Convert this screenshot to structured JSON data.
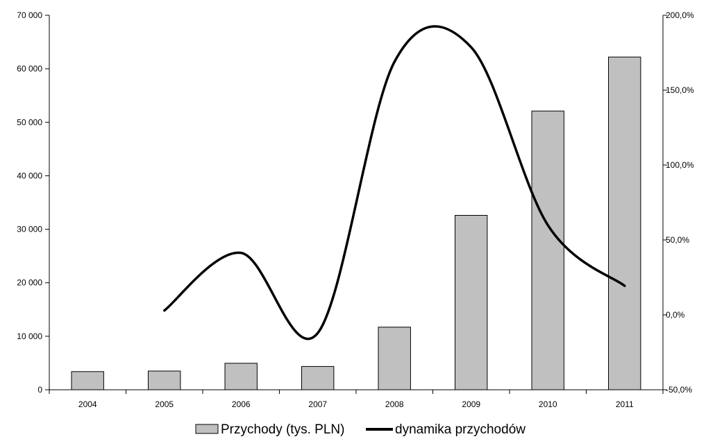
{
  "chart_data": {
    "type": "bar",
    "categories": [
      "2004",
      "2005",
      "2006",
      "2007",
      "2008",
      "2009",
      "2010",
      "2011"
    ],
    "series": [
      {
        "name": "Przychody (tys. PLN)",
        "type": "bar",
        "axis": "left",
        "color": "#c0c0c0",
        "values": [
          3400,
          3500,
          4950,
          4350,
          11700,
          32600,
          52100,
          62200
        ]
      },
      {
        "name": "dynamika przychodów",
        "type": "line",
        "axis": "right",
        "smooth": true,
        "color": "#000000",
        "values": [
          null,
          2.9,
          41.4,
          -12.1,
          169.0,
          178.6,
          59.8,
          19.4
        ]
      }
    ],
    "y_left": {
      "ylim": [
        0,
        70000
      ],
      "ticks": [
        0,
        10000,
        20000,
        30000,
        40000,
        50000,
        60000,
        70000
      ],
      "tick_labels": [
        "0",
        "10 000",
        "20 000",
        "30 000",
        "40 000",
        "50 000",
        "60 000",
        "70 000"
      ]
    },
    "y_right": {
      "ylim": [
        -50,
        200
      ],
      "ticks": [
        -50,
        0,
        50,
        100,
        150,
        200
      ],
      "tick_labels": [
        "-50,0%",
        "0,0%",
        "50,0%",
        "100,0%",
        "150,0%",
        "200,0%"
      ]
    },
    "grid": false,
    "legend_position": "bottom-center",
    "legend": [
      {
        "label": "Przychody (tys. PLN)",
        "symbol": "bar"
      },
      {
        "label": "dynamika przychodów",
        "symbol": "line"
      }
    ]
  }
}
